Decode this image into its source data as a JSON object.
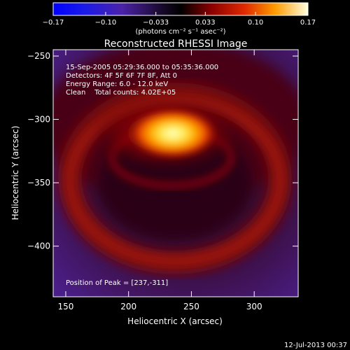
{
  "chart_data": {
    "type": "heatmap",
    "title": "Reconstructed RHESSI Image",
    "xlabel": "Heliocentric X (arcsec)",
    "ylabel": "Heliocentric Y (arcsec)",
    "xlim": [
      140,
      335
    ],
    "ylim": [
      -440,
      -245
    ],
    "x_ticks": [
      150,
      200,
      250,
      300
    ],
    "y_ticks": [
      -250,
      -300,
      -350,
      -400
    ],
    "colorbar": {
      "min": -0.17,
      "max": 0.17,
      "ticks": [
        "-0.17",
        "-0.10",
        "-0.033",
        "0.033",
        "0.10",
        "0.17"
      ],
      "tick_values": [
        -0.17,
        -0.1,
        -0.033,
        0.033,
        0.1,
        0.17
      ],
      "unit": "(photons cm⁻² s⁻¹ asec⁻²)"
    },
    "annotations": [
      "15-Sep-2005 05:29:36.000 to 05:35:36.000",
      "Detectors: 4F 5F 6F 7F 8F, Att 0",
      "Energy Range: 6.0 - 12.0 keV",
      "Clean    Total counts: 4.02E+05"
    ],
    "peak_label": "Position of Peak = [237,-311]",
    "peak": {
      "x": 237,
      "y": -311,
      "value": 0.17
    },
    "footer_date": "12-Jul-2013 00:37"
  }
}
